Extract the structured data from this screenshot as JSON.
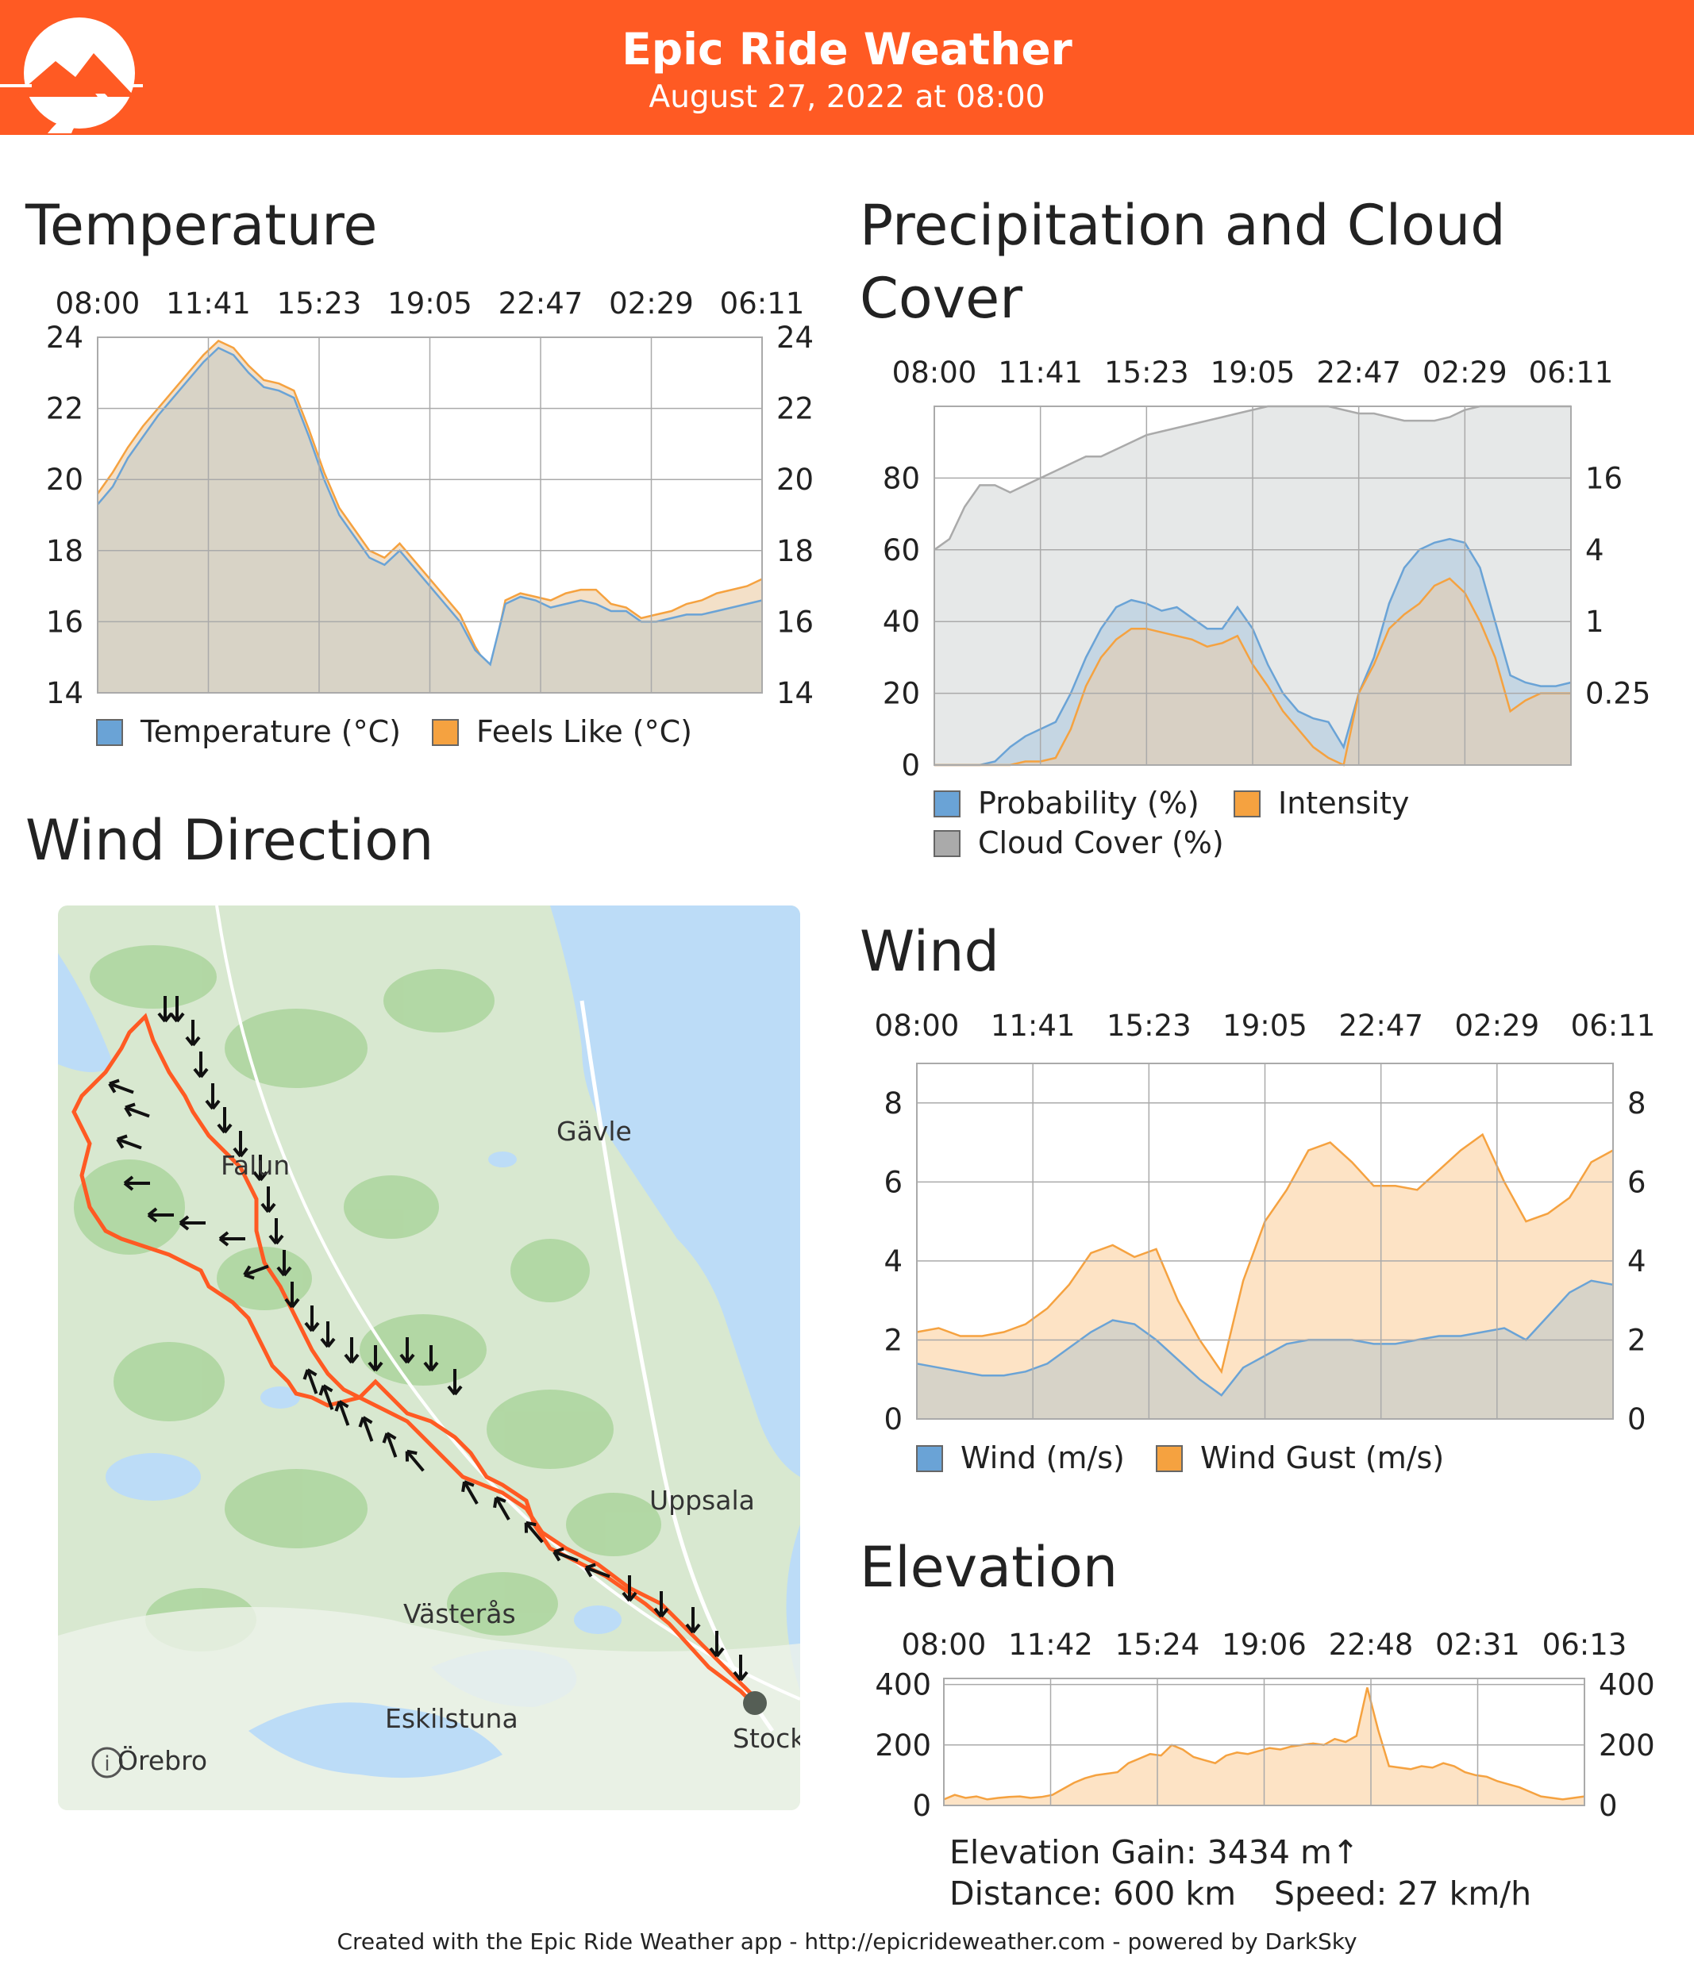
{
  "header": {
    "title": "Epic Ride Weather",
    "subtitle": "August 27, 2022 at 08:00"
  },
  "sections": {
    "temperature": "Temperature",
    "precip_title": "Precipitation and Cloud Cover",
    "wind_direction": "Wind Direction",
    "wind": "Wind",
    "elevation": "Elevation"
  },
  "map": {
    "labels": [
      "Gävle",
      "Falun",
      "Uppsala",
      "Västerås",
      "Eskilstuna",
      "Örebro",
      "Stock"
    ],
    "info_icon": "info-icon"
  },
  "colors": {
    "header": "#ff5a23",
    "route": "#ff5a23",
    "blue": "#6aa3d6",
    "orange": "#f5a240",
    "gray": "#aaaaaa",
    "map_land": "#d8e8d0",
    "map_water": "#bcdcf7"
  },
  "chart_data": [
    {
      "type": "area",
      "id": "temperature",
      "x_ticks": [
        "08:00",
        "11:41",
        "15:23",
        "19:05",
        "22:47",
        "02:29",
        "06:11"
      ],
      "ylim": [
        14,
        24
      ],
      "y_ticks": [
        14,
        16,
        18,
        20,
        22,
        24
      ],
      "grid": true,
      "legend_placement": "bottom",
      "series": [
        {
          "name": "Temperature (°C)",
          "color": "#6aa3d6",
          "values": [
            19.3,
            19.8,
            20.6,
            21.2,
            21.8,
            22.3,
            22.8,
            23.3,
            23.7,
            23.5,
            23.0,
            22.6,
            22.5,
            22.3,
            21.2,
            20.0,
            19.0,
            18.4,
            17.8,
            17.6,
            18.0,
            17.5,
            17.0,
            16.5,
            16.0,
            15.2,
            14.8,
            16.5,
            16.7,
            16.6,
            16.4,
            16.5,
            16.6,
            16.5,
            16.3,
            16.3,
            16.0,
            16.0,
            16.1,
            16.2,
            16.2,
            16.3,
            16.4,
            16.5,
            16.6
          ]
        },
        {
          "name": "Feels Like (°C)",
          "color": "#f5a240",
          "values": [
            19.6,
            20.2,
            20.9,
            21.5,
            22.0,
            22.5,
            23.0,
            23.5,
            23.9,
            23.7,
            23.2,
            22.8,
            22.7,
            22.5,
            21.4,
            20.2,
            19.2,
            18.6,
            18.0,
            17.8,
            18.2,
            17.7,
            17.2,
            16.7,
            16.2,
            15.3,
            14.6,
            16.6,
            16.8,
            16.7,
            16.6,
            16.8,
            16.9,
            16.9,
            16.5,
            16.4,
            16.1,
            16.2,
            16.3,
            16.5,
            16.6,
            16.8,
            16.9,
            17.0,
            17.2
          ]
        }
      ]
    },
    {
      "type": "area",
      "id": "precipitation",
      "x_ticks": [
        "08:00",
        "11:41",
        "15:23",
        "19:05",
        "22:47",
        "02:29",
        "06:11"
      ],
      "ylim": [
        0,
        100
      ],
      "y_ticks": [
        0,
        20,
        40,
        60,
        80
      ],
      "y2_ticks": [
        "0.25",
        "1",
        "4",
        "16"
      ],
      "grid": true,
      "legend_placement": "bottom",
      "series": [
        {
          "name": "Probability (%)",
          "color": "#6aa3d6",
          "values": [
            0,
            0,
            0,
            0,
            1,
            5,
            8,
            10,
            12,
            20,
            30,
            38,
            44,
            46,
            45,
            43,
            44,
            41,
            38,
            38,
            44,
            38,
            28,
            20,
            15,
            13,
            12,
            5,
            20,
            30,
            45,
            55,
            60,
            62,
            63,
            62,
            55,
            40,
            25,
            23,
            22,
            22,
            23
          ]
        },
        {
          "name": "Intensity",
          "color": "#f5a240",
          "values": [
            0,
            0,
            0,
            0,
            0,
            0,
            1,
            1,
            2,
            10,
            22,
            30,
            35,
            38,
            38,
            37,
            36,
            35,
            33,
            34,
            36,
            28,
            22,
            15,
            10,
            5,
            2,
            0,
            20,
            28,
            38,
            42,
            45,
            50,
            52,
            48,
            40,
            30,
            15,
            18,
            20,
            20,
            20
          ]
        },
        {
          "name": "Cloud Cover (%)",
          "color": "#aaaaaa",
          "values": [
            60,
            63,
            72,
            78,
            78,
            76,
            78,
            80,
            82,
            84,
            86,
            86,
            88,
            90,
            92,
            93,
            94,
            95,
            96,
            97,
            98,
            99,
            100,
            100,
            100,
            100,
            100,
            99,
            98,
            98,
            97,
            96,
            96,
            96,
            97,
            99,
            100,
            100,
            100,
            100,
            100,
            100,
            100
          ]
        }
      ]
    },
    {
      "type": "area",
      "id": "wind",
      "x_ticks": [
        "08:00",
        "11:41",
        "15:23",
        "19:05",
        "22:47",
        "02:29",
        "06:11"
      ],
      "ylim": [
        0,
        9
      ],
      "y_ticks": [
        0,
        2,
        4,
        6,
        8
      ],
      "grid": true,
      "legend_placement": "bottom",
      "series": [
        {
          "name": "Wind (m/s)",
          "color": "#6aa3d6",
          "values": [
            1.4,
            1.3,
            1.2,
            1.1,
            1.1,
            1.2,
            1.4,
            1.8,
            2.2,
            2.5,
            2.4,
            2.0,
            1.5,
            1.0,
            0.6,
            1.3,
            1.6,
            1.9,
            2.0,
            2.0,
            2.0,
            1.9,
            1.9,
            2.0,
            2.1,
            2.1,
            2.2,
            2.3,
            2.0,
            2.6,
            3.2,
            3.5,
            3.4
          ]
        },
        {
          "name": "Wind Gust (m/s)",
          "color": "#f5a240",
          "values": [
            2.2,
            2.3,
            2.1,
            2.1,
            2.2,
            2.4,
            2.8,
            3.4,
            4.2,
            4.4,
            4.1,
            4.3,
            3.0,
            2.0,
            1.2,
            3.5,
            5.0,
            5.8,
            6.8,
            7.0,
            6.5,
            5.9,
            5.9,
            5.8,
            6.3,
            6.8,
            7.2,
            6.0,
            5.0,
            5.2,
            5.6,
            6.5,
            6.8
          ]
        }
      ]
    },
    {
      "type": "area",
      "id": "elevation",
      "x_ticks": [
        "08:00",
        "11:42",
        "15:24",
        "19:06",
        "22:48",
        "02:31",
        "06:13"
      ],
      "ylim": [
        0,
        420
      ],
      "y_ticks": [
        0,
        200,
        400
      ],
      "grid": true,
      "series": [
        {
          "name": "Elevation",
          "color": "#f5a240",
          "values": [
            20,
            35,
            25,
            30,
            20,
            25,
            28,
            30,
            25,
            28,
            35,
            55,
            75,
            90,
            100,
            105,
            110,
            140,
            155,
            170,
            165,
            200,
            185,
            160,
            150,
            140,
            165,
            175,
            170,
            180,
            190,
            185,
            195,
            200,
            205,
            200,
            220,
            210,
            230,
            390,
            250,
            130,
            125,
            120,
            130,
            125,
            140,
            130,
            110,
            100,
            95,
            80,
            70,
            60,
            45,
            30,
            25,
            20,
            25,
            30
          ]
        }
      ]
    }
  ],
  "stats": {
    "elevation_gain": "Elevation Gain: 3434 m↑",
    "distance": "Distance: 600 km",
    "speed": "Speed: 27 km/h"
  },
  "footer": "Created with the Epic Ride Weather app - http://epicrideweather.com - powered by DarkSky"
}
